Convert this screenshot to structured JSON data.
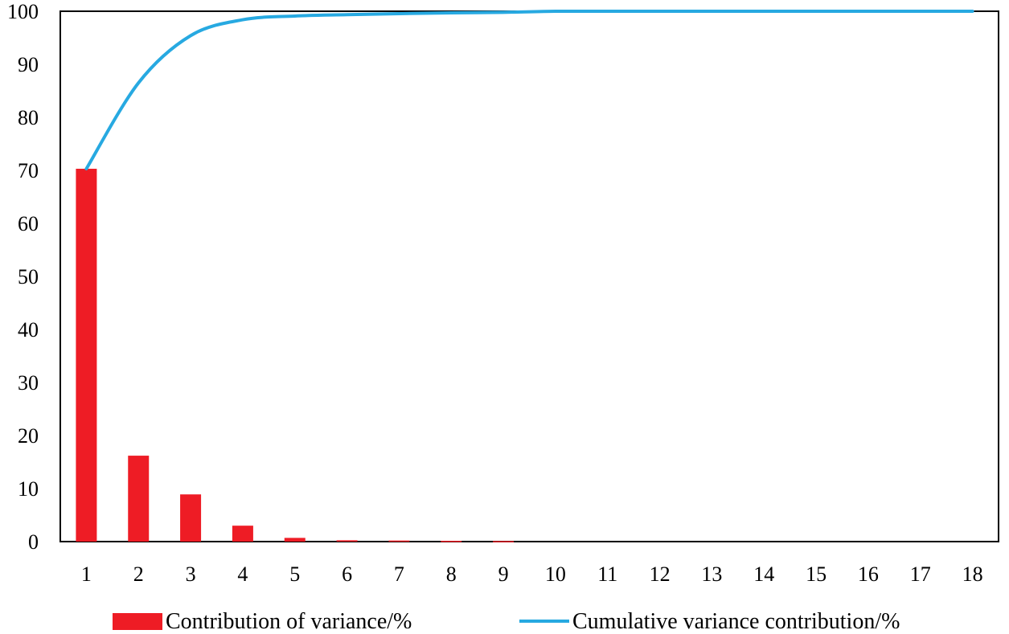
{
  "chart_data": {
    "type": "bar",
    "categories": [
      "1",
      "2",
      "3",
      "4",
      "5",
      "6",
      "7",
      "8",
      "9",
      "10",
      "11",
      "12",
      "13",
      "14",
      "15",
      "16",
      "17",
      "18"
    ],
    "series": [
      {
        "name": "Contribution of variance/%",
        "type": "bar",
        "color": "#ee1c25",
        "values": [
          70.3,
          16.2,
          8.9,
          3.0,
          0.7,
          0.25,
          0.2,
          0.15,
          0.1,
          0,
          0,
          0,
          0,
          0,
          0,
          0,
          0,
          0
        ]
      },
      {
        "name": "Cumulative variance contribution/%",
        "type": "line",
        "color": "#27a9e1",
        "values": [
          70.3,
          86.5,
          95.4,
          98.4,
          99.1,
          99.35,
          99.55,
          99.7,
          99.8,
          100,
          100,
          100,
          100,
          100,
          100,
          100,
          100,
          100
        ]
      }
    ],
    "yticks": [
      "0",
      "10",
      "20",
      "30",
      "40",
      "50",
      "60",
      "70",
      "80",
      "90",
      "100"
    ],
    "ylim": [
      0,
      100
    ],
    "grid": false,
    "legend_position": "bottom"
  }
}
